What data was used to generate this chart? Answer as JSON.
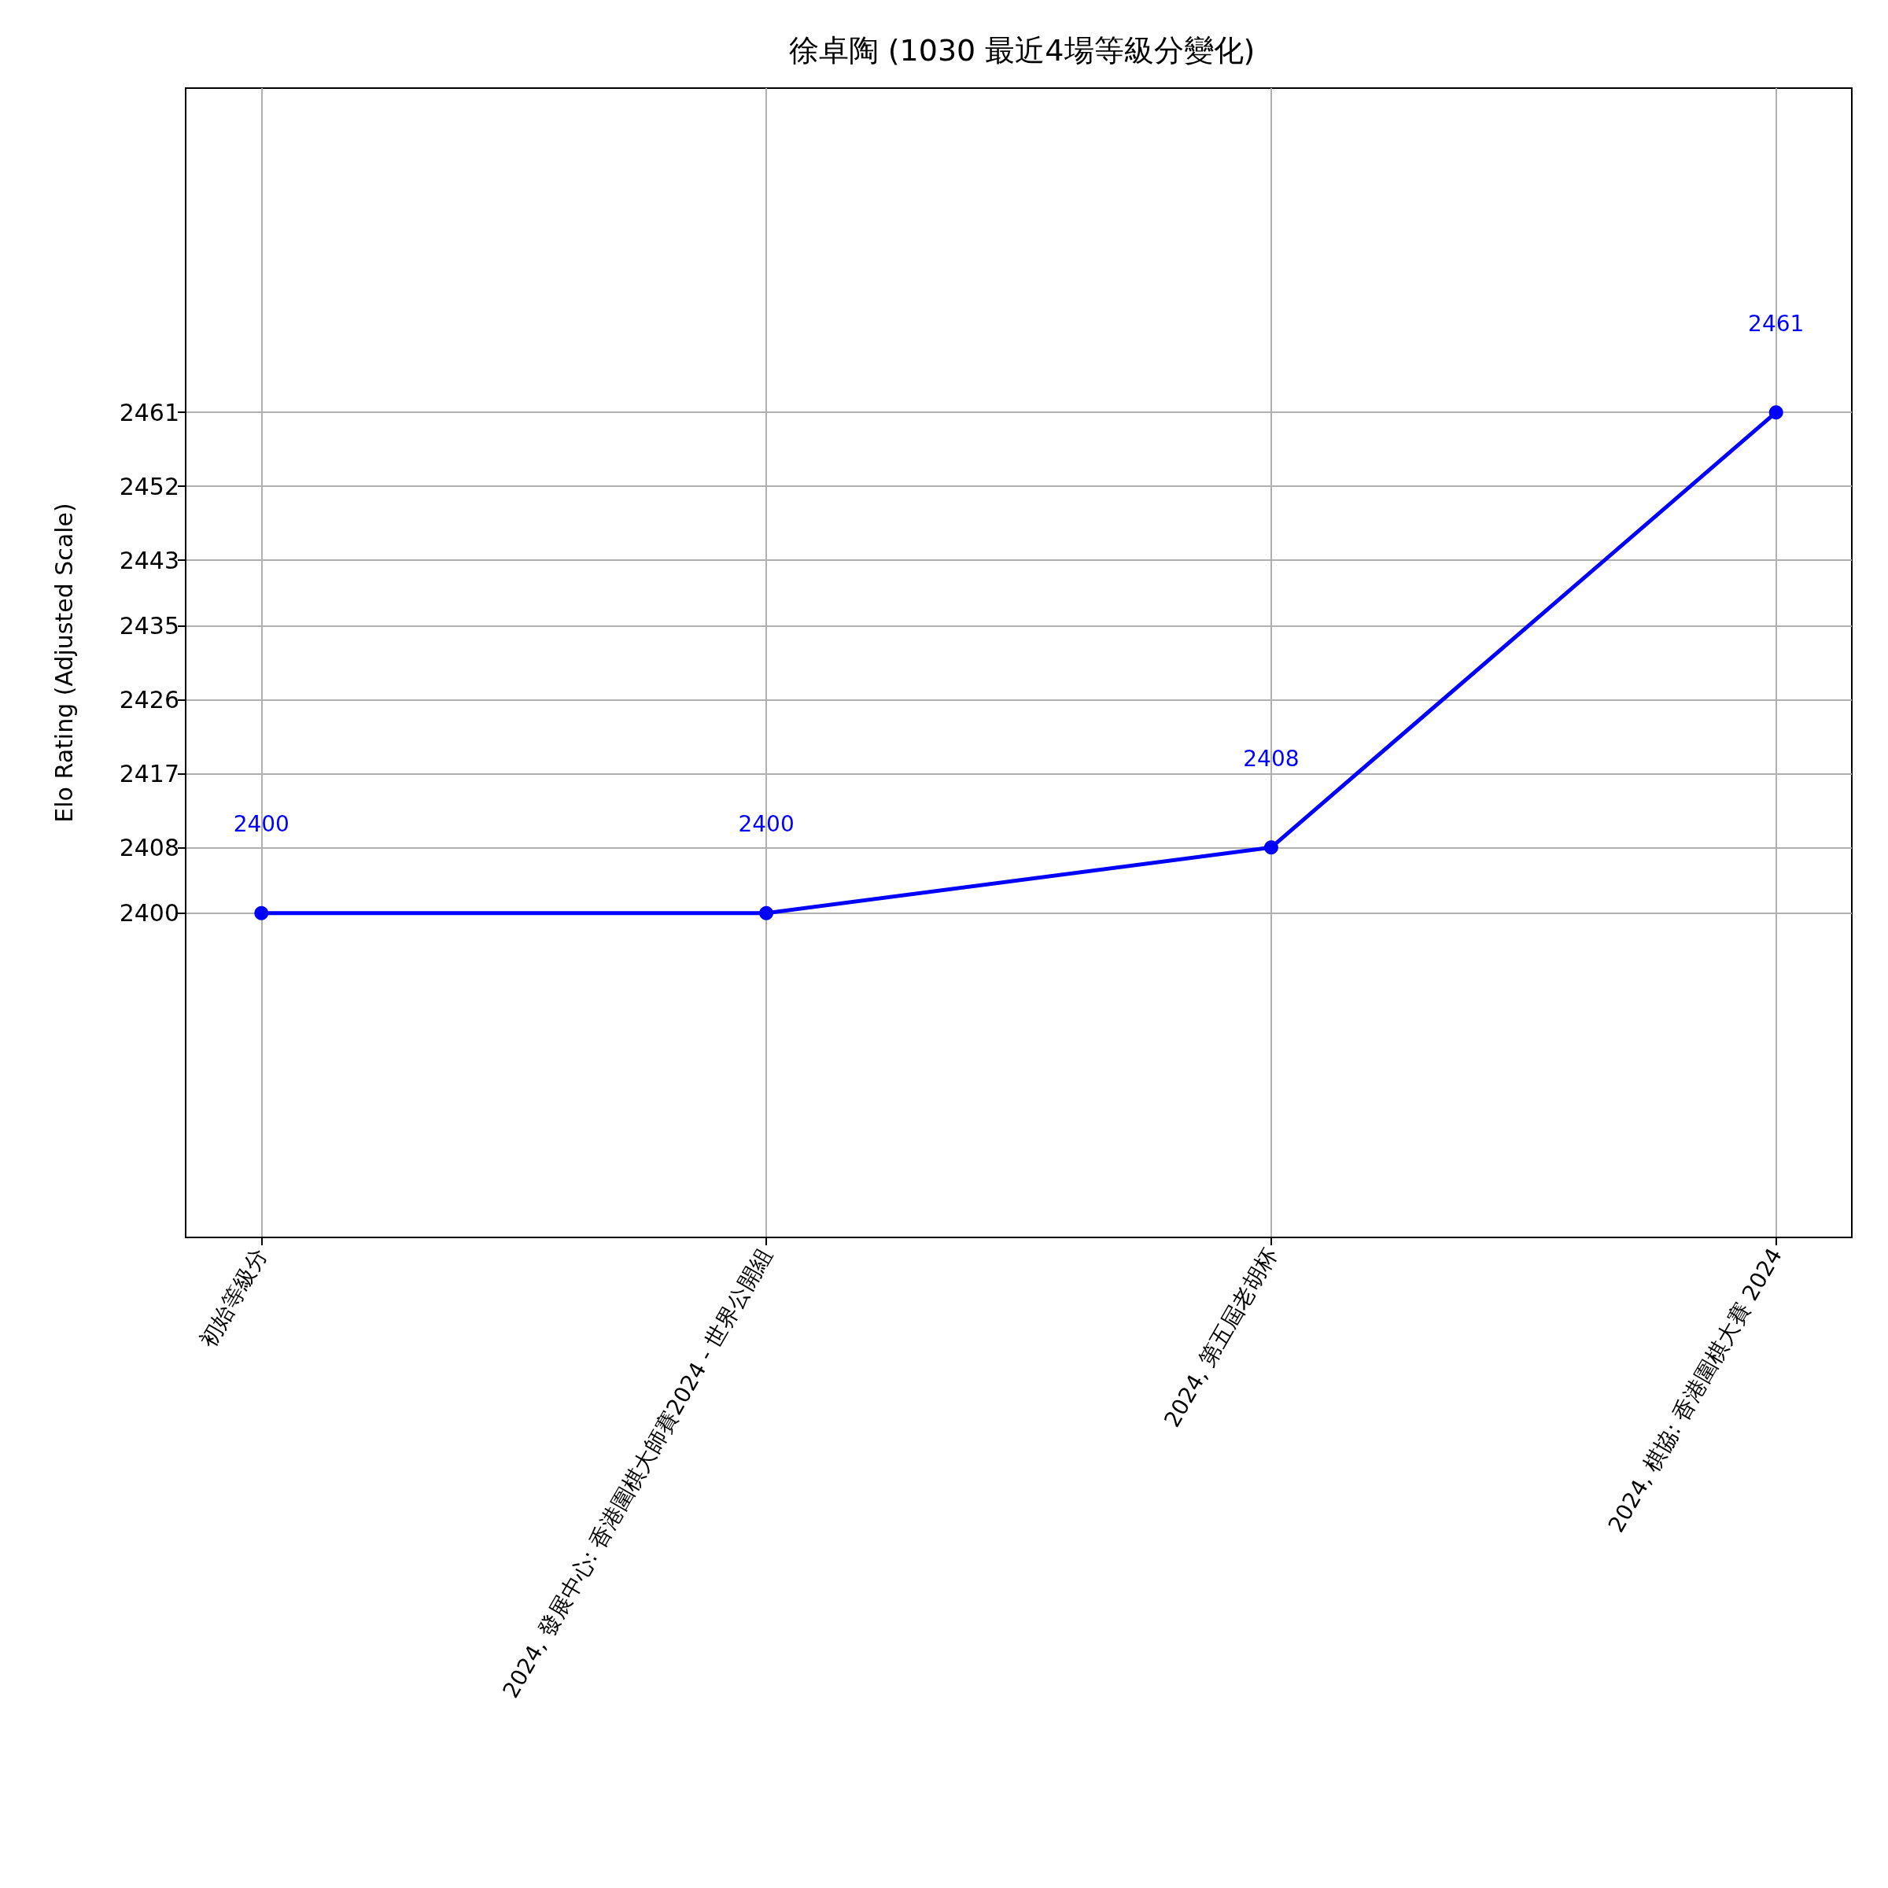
{
  "chart_data": {
    "type": "line",
    "title": "徐卓陶 (1030 最近4場等級分變化)",
    "ylabel": "Elo Rating (Adjusted Scale)",
    "categories": [
      "初始等級分",
      "2024, 發展中心: 香港圍棋大師賽2024 - 世界公開組",
      "2024, 第五屆老胡杯",
      "2024, 棋協: 香港圍棋大賽 2024"
    ],
    "series": [
      {
        "color": "#0000ff",
        "values": [
          2400,
          2400,
          2408,
          2461
        ]
      }
    ],
    "data_labels": true,
    "ylim": [
      2360.5,
      2500.5
    ],
    "yticks": [
      2400,
      2408,
      2417,
      2426,
      2435,
      2443,
      2452,
      2461
    ],
    "grid": true,
    "marker": "circle",
    "line_style": "solid"
  }
}
